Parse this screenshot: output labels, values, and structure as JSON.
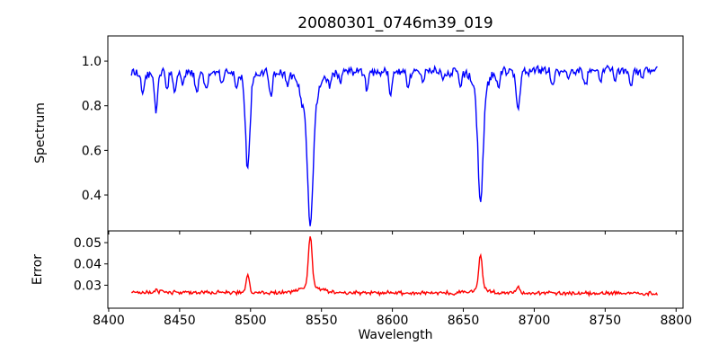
{
  "figure": {
    "background_color": "#ffffff",
    "spine_color": "#000000"
  },
  "chart_data": {
    "type": "line",
    "title": "20080301_0746m39_019",
    "xlabel": "Wavelength",
    "xlim": [
      8399.4,
      8804.9
    ],
    "x_tick_values": [
      8400,
      8450,
      8500,
      8550,
      8600,
      8650,
      8700,
      8750,
      8800
    ],
    "x_tick_labels": [
      "8400",
      "8450",
      "8500",
      "8550",
      "8600",
      "8650",
      "8700",
      "8750",
      "8800"
    ],
    "x_data_range": [
      8416,
      8787.5
    ],
    "sample_step": 0.72,
    "noise_seed": 20080301,
    "grid": false,
    "legend": "none",
    "notable_features": [
      {
        "wavelength": 8433.5,
        "spectrum_min": 0.78,
        "error_peak": 0.028
      },
      {
        "wavelength": 8498.0,
        "spectrum_min": 0.52,
        "error_peak": 0.035
      },
      {
        "wavelength": 8542.1,
        "spectrum_min": 0.28,
        "error_peak": 0.053
      },
      {
        "wavelength": 8662.1,
        "spectrum_min": 0.36,
        "error_peak": 0.0445
      },
      {
        "wavelength": 8688.6,
        "spectrum_min": 0.77,
        "error_peak": 0.0295
      }
    ],
    "panels": [
      {
        "name": "spectrum",
        "ylabel": "Spectrum",
        "ylim": [
          0.239,
          1.113
        ],
        "y_tick_values": [
          0.4,
          0.6,
          0.8,
          1.0
        ],
        "y_tick_labels": [
          "0.4",
          "0.6",
          "0.8",
          "1.0"
        ],
        "color": "#0000ff",
        "continuum": [
          0.945,
          0.962
        ],
        "noise_amplitude": 0.026,
        "absorption_lines": [
          {
            "center": 8424.0,
            "depth": 0.09,
            "sigma": 1.0
          },
          {
            "center": 8433.5,
            "depth": 0.17,
            "sigma": 1.1
          },
          {
            "center": 8441.0,
            "depth": 0.08,
            "sigma": 0.9
          },
          {
            "center": 8446.5,
            "depth": 0.08,
            "sigma": 0.9
          },
          {
            "center": 8452.0,
            "depth": 0.05,
            "sigma": 0.9
          },
          {
            "center": 8462.0,
            "depth": 0.09,
            "sigma": 1.0
          },
          {
            "center": 8468.5,
            "depth": 0.08,
            "sigma": 1.1
          },
          {
            "center": 8480.0,
            "depth": 0.05,
            "sigma": 0.9
          },
          {
            "center": 8490.0,
            "depth": 0.05,
            "sigma": 0.9
          },
          {
            "center": 8498.0,
            "depth": 0.4,
            "sigma": 1.5
          },
          {
            "center": 8498.0,
            "depth": 0.04,
            "sigma": 4.0
          },
          {
            "center": 8514.2,
            "depth": 0.1,
            "sigma": 1.1
          },
          {
            "center": 8526.0,
            "depth": 0.05,
            "sigma": 0.9
          },
          {
            "center": 8536.0,
            "depth": 0.05,
            "sigma": 1.0
          },
          {
            "center": 8542.1,
            "depth": 0.55,
            "sigma": 2.0
          },
          {
            "center": 8542.1,
            "depth": 0.13,
            "sigma": 6.0
          },
          {
            "center": 8556.0,
            "depth": 0.06,
            "sigma": 0.9
          },
          {
            "center": 8563.0,
            "depth": 0.05,
            "sigma": 0.9
          },
          {
            "center": 8582.0,
            "depth": 0.08,
            "sigma": 1.0
          },
          {
            "center": 8598.8,
            "depth": 0.09,
            "sigma": 1.1
          },
          {
            "center": 8611.0,
            "depth": 0.08,
            "sigma": 1.0
          },
          {
            "center": 8621.5,
            "depth": 0.06,
            "sigma": 0.9
          },
          {
            "center": 8636.0,
            "depth": 0.05,
            "sigma": 0.9
          },
          {
            "center": 8648.0,
            "depth": 0.07,
            "sigma": 1.0
          },
          {
            "center": 8662.1,
            "depth": 0.5,
            "sigma": 1.7
          },
          {
            "center": 8662.1,
            "depth": 0.1,
            "sigma": 5.0
          },
          {
            "center": 8674.8,
            "depth": 0.08,
            "sigma": 0.9
          },
          {
            "center": 8688.6,
            "depth": 0.19,
            "sigma": 1.2
          },
          {
            "center": 8713.0,
            "depth": 0.06,
            "sigma": 0.9
          },
          {
            "center": 8724.0,
            "depth": 0.05,
            "sigma": 0.9
          },
          {
            "center": 8736.0,
            "depth": 0.07,
            "sigma": 1.0
          },
          {
            "center": 8747.0,
            "depth": 0.05,
            "sigma": 0.9
          },
          {
            "center": 8757.0,
            "depth": 0.05,
            "sigma": 0.9
          },
          {
            "center": 8768.0,
            "depth": 0.07,
            "sigma": 1.0
          },
          {
            "center": 8776.0,
            "depth": 0.05,
            "sigma": 0.9
          }
        ]
      },
      {
        "name": "error",
        "ylabel": "Error",
        "ylim": [
          0.0192,
          0.0555
        ],
        "y_tick_values": [
          0.03,
          0.04,
          0.05
        ],
        "y_tick_labels": [
          "0.03",
          "0.04",
          "0.05"
        ],
        "color": "#ff0000",
        "baseline": [
          0.0267,
          0.0262
        ],
        "noise_amplitude": 0.0011,
        "peaks": [
          {
            "center": 8433.5,
            "height": 0.0015,
            "sigma": 1.0
          },
          {
            "center": 8498.0,
            "height": 0.0085,
            "sigma": 1.2
          },
          {
            "center": 8542.1,
            "height": 0.024,
            "sigma": 1.3
          },
          {
            "center": 8542.1,
            "height": 0.0028,
            "sigma": 7.0
          },
          {
            "center": 8662.1,
            "height": 0.016,
            "sigma": 1.2
          },
          {
            "center": 8662.1,
            "height": 0.002,
            "sigma": 6.0
          },
          {
            "center": 8688.6,
            "height": 0.0028,
            "sigma": 1.1
          }
        ]
      }
    ]
  }
}
